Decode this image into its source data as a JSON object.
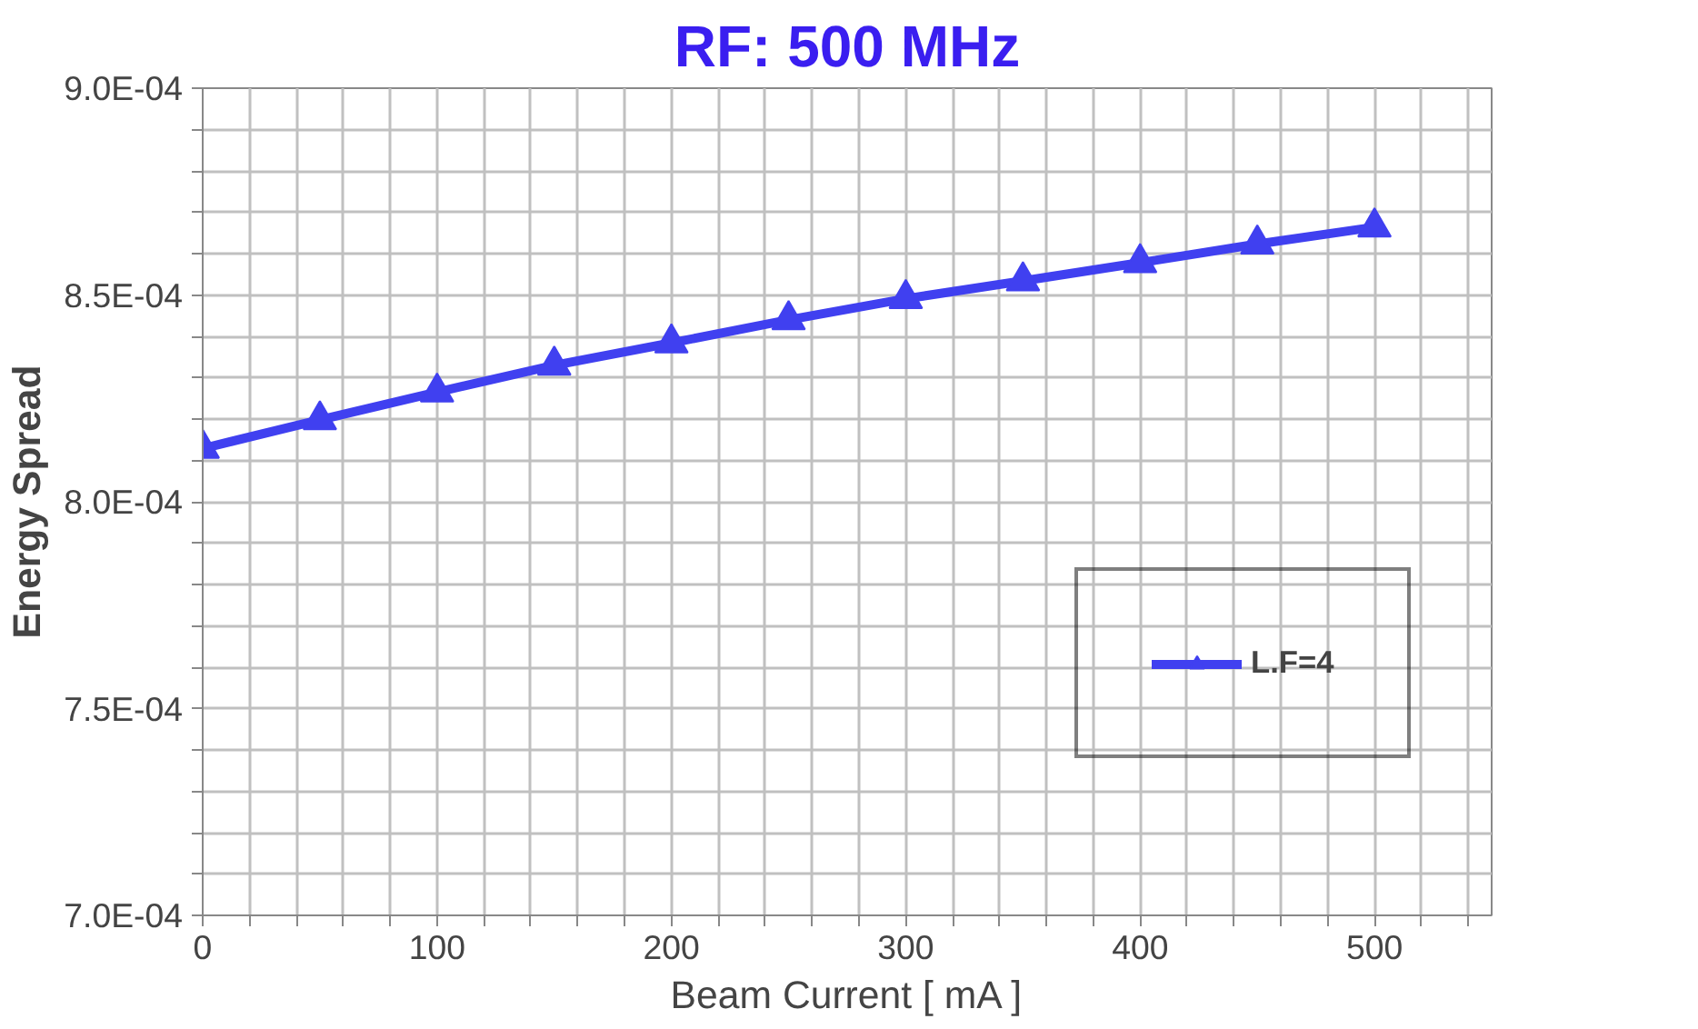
{
  "chart_data": {
    "type": "line",
    "title": "RF: 500 MHz",
    "xlabel": "Beam Current [ mA ]",
    "ylabel": "Energy Spread",
    "x": [
      0,
      50,
      100,
      150,
      200,
      250,
      300,
      350,
      400,
      450,
      500
    ],
    "series": [
      {
        "name": "L.F=4",
        "color": "#4040f0",
        "values": [
          0.0008129,
          0.0008198,
          0.0008265,
          0.000833,
          0.0008384,
          0.000844,
          0.0008491,
          0.0008534,
          0.0008578,
          0.0008623,
          0.0008664
        ]
      }
    ],
    "xlim": [
      0,
      550
    ],
    "xticks": [
      0,
      {
        "value": 20,
        "label": null
      },
      {
        "value": 40,
        "label": null
      },
      {
        "value": 60,
        "label": null
      },
      {
        "value": 80,
        "label": null
      },
      100,
      {
        "value": 120,
        "label": null
      },
      {
        "value": 140,
        "label": null
      },
      {
        "value": 160,
        "label": null
      },
      {
        "value": 180,
        "label": null
      },
      200,
      {
        "value": 220,
        "label": null
      },
      {
        "value": 240,
        "label": null
      },
      {
        "value": 260,
        "label": null
      },
      {
        "value": 280,
        "label": null
      },
      300,
      {
        "value": 320,
        "label": null
      },
      {
        "value": 340,
        "label": null
      },
      {
        "value": 360,
        "label": null
      },
      {
        "value": 380,
        "label": null
      },
      400,
      {
        "value": 420,
        "label": null
      },
      {
        "value": 440,
        "label": null
      },
      {
        "value": 460,
        "label": null
      },
      {
        "value": 480,
        "label": null
      },
      500,
      {
        "value": 520,
        "label": null
      },
      {
        "value": 540,
        "label": null
      }
    ],
    "ylim": [
      0.0007,
      0.0009
    ],
    "yticks": [
      {
        "value": 0.0007,
        "label": "7.0E-04"
      },
      {
        "value": 0.00071,
        "label": null
      },
      {
        "value": 0.00072,
        "label": null
      },
      {
        "value": 0.00073,
        "label": null
      },
      {
        "value": 0.00074,
        "label": null
      },
      {
        "value": 0.00075,
        "label": "7.5E-04"
      },
      {
        "value": 0.00076,
        "label": null
      },
      {
        "value": 0.00077,
        "label": null
      },
      {
        "value": 0.00078,
        "label": null
      },
      {
        "value": 0.00079,
        "label": null
      },
      {
        "value": 0.0008,
        "label": "8.0E-04"
      },
      {
        "value": 0.00081,
        "label": null
      },
      {
        "value": 0.00082,
        "label": null
      },
      {
        "value": 0.00083,
        "label": null
      },
      {
        "value": 0.00084,
        "label": null
      },
      {
        "value": 0.00085,
        "label": "8.5E-04"
      },
      {
        "value": 0.00086,
        "label": null
      },
      {
        "value": 0.00087,
        "label": null
      },
      {
        "value": 0.00088,
        "label": null
      },
      {
        "value": 0.00089,
        "label": null
      },
      {
        "value": 0.0009,
        "label": "9.0E-04"
      }
    ],
    "grid": true,
    "legend": "right",
    "marker": "triangle",
    "line_style": "solid"
  }
}
